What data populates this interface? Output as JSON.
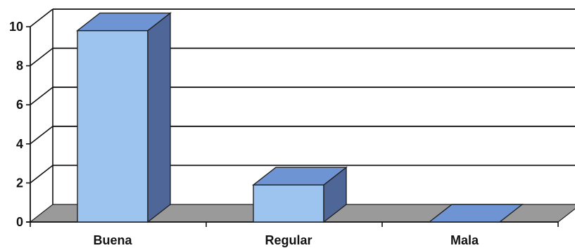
{
  "chart_data": {
    "type": "bar",
    "style": "3d-column",
    "categories": [
      "Buena",
      "Regular",
      "Mala"
    ],
    "values": [
      9.8,
      1.9,
      0
    ],
    "ylim": [
      0,
      10
    ],
    "yticks": [
      "0",
      "2",
      "4",
      "6",
      "8",
      "10"
    ],
    "grid": true,
    "legend": "none",
    "colors": {
      "bar_front": "#9dc3ef",
      "bar_top": "#6f94d3",
      "bar_side": "#4f6699",
      "floor": "#9a9a9a",
      "gridline": "#111111"
    }
  }
}
